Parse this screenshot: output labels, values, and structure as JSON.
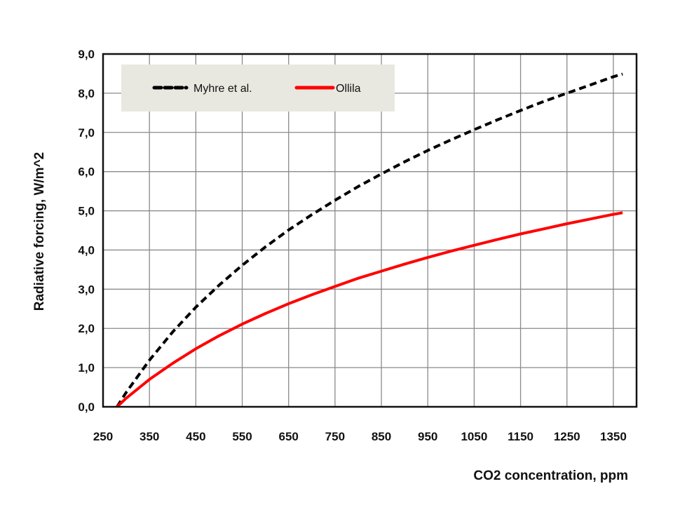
{
  "chart_data": {
    "type": "line",
    "title": "",
    "xlabel": "CO2 concentration, ppm",
    "ylabel": "Radiative forcing, W/m^2",
    "xlim": [
      250,
      1400
    ],
    "ylim": [
      0,
      9
    ],
    "grid": true,
    "legend_placement": "top-left",
    "x_ticks": [
      "250",
      "350",
      "450",
      "550",
      "650",
      "750",
      "850",
      "950",
      "1050",
      "1150",
      "1250",
      "1350"
    ],
    "x_tick_values": [
      250,
      350,
      450,
      550,
      650,
      750,
      850,
      950,
      1050,
      1150,
      1250,
      1350
    ],
    "y_ticks": [
      "0,0",
      "1,0",
      "2,0",
      "3,0",
      "4,0",
      "5,0",
      "6,0",
      "7,0",
      "8,0",
      "9,0"
    ],
    "y_tick_values": [
      0,
      1,
      2,
      3,
      4,
      5,
      6,
      7,
      8,
      9
    ],
    "x": [
      280,
      300,
      350,
      400,
      450,
      500,
      550,
      600,
      650,
      700,
      750,
      800,
      850,
      900,
      950,
      1000,
      1050,
      1100,
      1150,
      1200,
      1250,
      1300,
      1350,
      1370
    ],
    "series": [
      {
        "name": "Myhre et al.",
        "color": "#000000",
        "style": "dashed",
        "values": [
          0,
          0.37,
          1.19,
          1.91,
          2.54,
          3.1,
          3.61,
          4.08,
          4.51,
          4.9,
          5.27,
          5.62,
          5.94,
          6.25,
          6.54,
          6.81,
          7.07,
          7.32,
          7.56,
          7.79,
          8.0,
          8.21,
          8.42,
          8.49
        ]
      },
      {
        "name": "Ollila",
        "color": "#ff0000",
        "style": "solid",
        "values": [
          0,
          0.22,
          0.7,
          1.11,
          1.48,
          1.81,
          2.11,
          2.38,
          2.63,
          2.86,
          3.07,
          3.28,
          3.46,
          3.64,
          3.81,
          3.97,
          4.12,
          4.27,
          4.41,
          4.54,
          4.67,
          4.79,
          4.91,
          4.95
        ]
      }
    ]
  }
}
